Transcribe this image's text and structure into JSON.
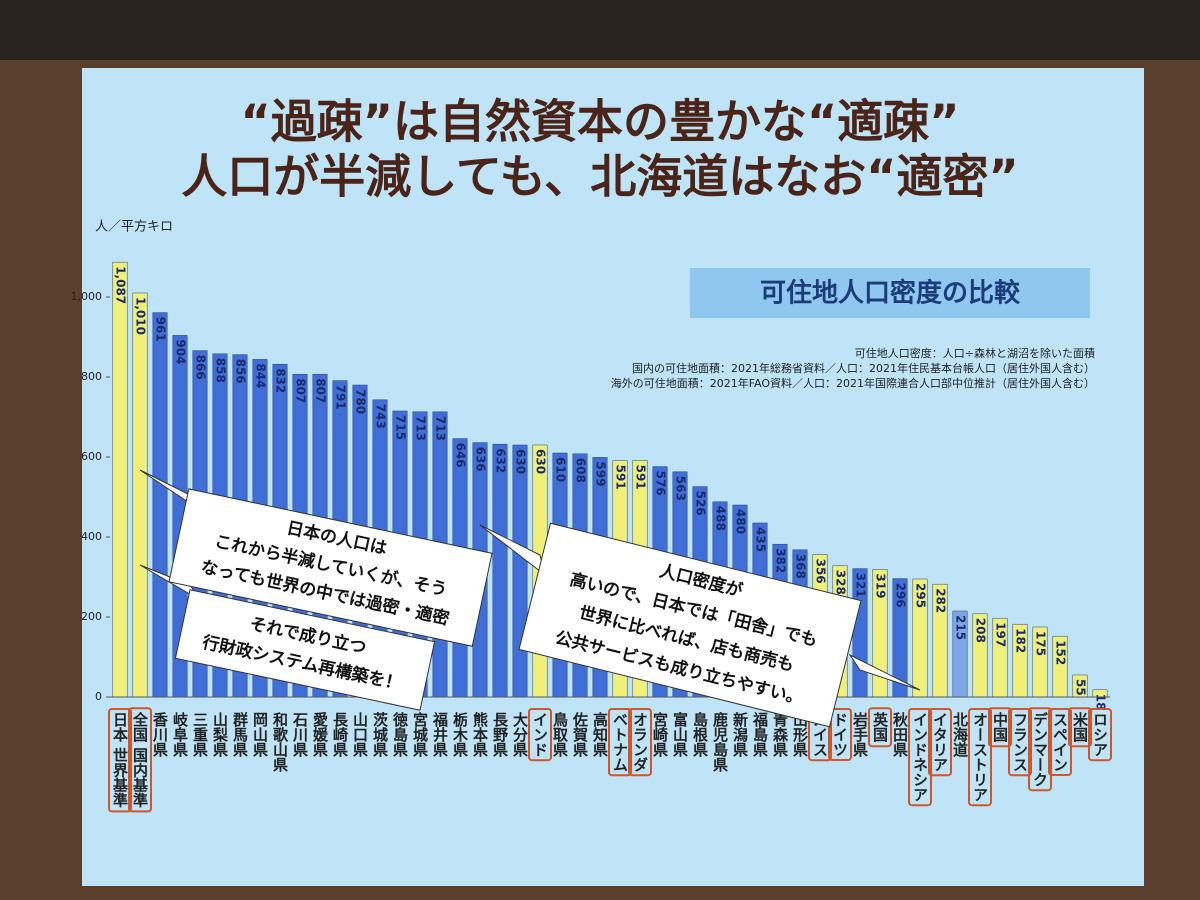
{
  "title_lines": [
    "“過疎”は自然資本の豊かな“適疎”",
    "人口が半減しても、北海道はなお“適密”"
  ],
  "chart_data": {
    "type": "bar",
    "title": "可住地人口密度の比較",
    "y_label": "人／平方キロ",
    "notes": [
      "可住地人口密度：人口÷森林と湖沼を除いた面積",
      "国内の可住地面積：2021年総務省資料／人口：2021年住民基本台帳人口（居住外国人含む）",
      "海外の可住地面積：2021年FAO資料／人口：2021年国際連合人口部中位推計（居住外国人含む）"
    ],
    "callouts": [
      "日本の人口は",
      "これから半減していくが、そう",
      "なっても世界の中では過密・適密",
      "それで成り立つ",
      "行財政システム再構築を！",
      "人口密度が",
      "高いので、日本では「田舎」でも",
      "世界に比べれば、店も商売も",
      "公共サービスも成り立ちやすい。"
    ],
    "categories": [
      "日本 世界基準",
      "全国 国内基準",
      "香川県",
      "岐阜県",
      "三重県",
      "山梨県",
      "群馬県",
      "岡山県",
      "和歌山県",
      "石川県",
      "愛媛県",
      "長崎県",
      "山口県",
      "茨城県",
      "徳島県",
      "宮城県",
      "福井県",
      "栃木県",
      "熊本県",
      "長野県",
      "大分県",
      "インド",
      "鳥取県",
      "佐賀県",
      "高知県",
      "ベトナム",
      "オランダ",
      "宮崎県",
      "富山県",
      "島根県",
      "鹿児島県",
      "新潟県",
      "福島県",
      "青森県",
      "山形県",
      "スイス",
      "ドイツ",
      "岩手県",
      "英国",
      "秋田県",
      "インドネシア",
      "イタリア",
      "北海道",
      "オーストリア",
      "中国",
      "フランス",
      "デンマーク",
      "スペイン",
      "米国",
      "ロシア"
    ],
    "values": [
      1087,
      1010,
      961,
      904,
      866,
      858,
      856,
      844,
      832,
      807,
      807,
      791,
      780,
      743,
      715,
      713,
      713,
      646,
      636,
      632,
      630,
      630,
      610,
      608,
      599,
      591,
      591,
      576,
      563,
      526,
      488,
      480,
      435,
      382,
      368,
      356,
      328,
      321,
      319,
      296,
      295,
      282,
      215,
      208,
      197,
      182,
      175,
      152,
      55,
      18
    ],
    "value_labels": [
      "1,087",
      "1,010",
      "961",
      "904",
      "866",
      "858",
      "856",
      "844",
      "832",
      "807",
      "807",
      "791",
      "780",
      "743",
      "715",
      "713",
      "713",
      "646",
      "636",
      "632",
      "630",
      "630",
      "610",
      "608",
      "599",
      "591",
      "591",
      "576",
      "563",
      "526",
      "488",
      "480",
      "435",
      "382",
      "368",
      "356",
      "328",
      "321",
      "319",
      "296",
      "295",
      "282",
      "215",
      "208",
      "197",
      "182",
      "175",
      "152",
      "55",
      "18"
    ],
    "bar_colors": [
      "#eef07a",
      "#eef07a",
      "#3f6fd6",
      "#3f6fd6",
      "#3f6fd6",
      "#3f6fd6",
      "#3f6fd6",
      "#3f6fd6",
      "#3f6fd6",
      "#3f6fd6",
      "#3f6fd6",
      "#3f6fd6",
      "#3f6fd6",
      "#3f6fd6",
      "#3f6fd6",
      "#3f6fd6",
      "#3f6fd6",
      "#3f6fd6",
      "#3f6fd6",
      "#3f6fd6",
      "#3f6fd6",
      "#eef07a",
      "#3f6fd6",
      "#3f6fd6",
      "#3f6fd6",
      "#eef07a",
      "#eef07a",
      "#3f6fd6",
      "#3f6fd6",
      "#3f6fd6",
      "#3f6fd6",
      "#3f6fd6",
      "#3f6fd6",
      "#3f6fd6",
      "#3f6fd6",
      "#eef07a",
      "#eef07a",
      "#3f6fd6",
      "#eef07a",
      "#3f6fd6",
      "#eef07a",
      "#eef07a",
      "#7fa6e8",
      "#eef07a",
      "#eef07a",
      "#eef07a",
      "#eef07a",
      "#eef07a",
      "#eef07a",
      "#eef07a"
    ],
    "ylim": [
      0,
      1100
    ],
    "yticks": [
      0,
      200,
      400,
      600,
      800,
      {
        "value": 1000,
        "label": "1,000"
      }
    ],
    "grid": false
  }
}
